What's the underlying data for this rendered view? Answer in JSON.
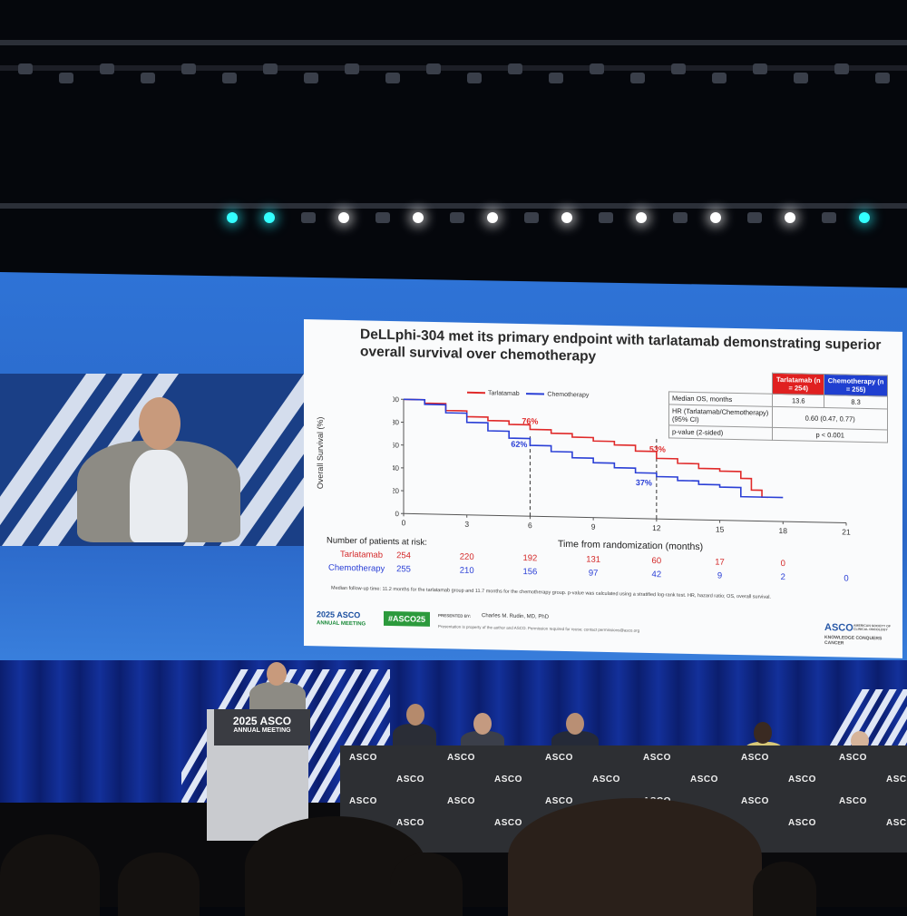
{
  "slide": {
    "title": "DeLLphi-304 met its primary endpoint with tarlatamab demonstrating superior overall survival over chemotherapy",
    "legend": {
      "tarlatamab": "Tarlatamab",
      "chemotherapy": "Chemotherapy"
    },
    "ylabel": "Overall Survival (%)",
    "xlabel": "Time from randomization (months)",
    "yticks": [
      "100",
      "80",
      "60",
      "40",
      "20",
      "0"
    ],
    "xticks": [
      "0",
      "3",
      "6",
      "9",
      "12",
      "15",
      "18",
      "21"
    ],
    "annotations": {
      "t6": "76%",
      "c6": "62%",
      "t12": "53%",
      "c12": "37%"
    },
    "stats": {
      "col_tarla": "Tarlatamab (n = 254)",
      "col_chemo": "Chemotherapy (n = 255)",
      "row1_label": "Median OS, months",
      "row1_tarla": "13.6",
      "row1_chemo": "8.3",
      "row2_label": "HR (Tarlatamab/Chemotherapy) (95% CI)",
      "row2_value": "0.60 (0.47, 0.77)",
      "row3_label": "p-value (2-sided)",
      "row3_value": "p < 0.001"
    },
    "at_risk": {
      "heading": "Number of patients at risk:",
      "tarla_label": "Tarlatamab",
      "chemo_label": "Chemotherapy",
      "tarla": [
        "254",
        "220",
        "192",
        "131",
        "60",
        "17",
        "0"
      ],
      "chemo": [
        "255",
        "210",
        "156",
        "97",
        "42",
        "9",
        "2",
        "0"
      ]
    },
    "footnote": "Median follow-up time: 11.2 months for the tarlatamab group and 11.7 months for the chemotherapy group. p-value was calculated using a stratified log-rank test. HR, hazard ratio; OS, overall survival.",
    "footer": {
      "meeting": "2025 ASCO",
      "meeting_sub": "ANNUAL MEETING",
      "hashtag": "#ASCO25",
      "presented_by": "PRESENTED BY:",
      "presenter": "Charles M. Rudin, MD, PhD",
      "permission": "Presentation is property of the author and ASCO. Permission required for reuse; contact permissions@asco.org",
      "asco": "ASCO",
      "asco_sub": "AMERICAN SOCIETY OF CLINICAL ONCOLOGY",
      "tagline": "KNOWLEDGE CONQUERS CANCER"
    }
  },
  "stage": {
    "podium_line1": "2025 ASCO",
    "podium_line2": "ANNUAL MEETING",
    "table_brand": "ASCO"
  },
  "chart_data": {
    "type": "line",
    "xlabel": "Time from randomization (months)",
    "ylabel": "Overall Survival (%)",
    "xlim": [
      0,
      21
    ],
    "ylim": [
      0,
      100
    ],
    "series": [
      {
        "name": "Tarlatamab",
        "color": "#e02a2a",
        "x": [
          0,
          1,
          2,
          3,
          4,
          5,
          6,
          7,
          8,
          9,
          10,
          11,
          12,
          13,
          14,
          15,
          16,
          16.5,
          17,
          17.3
        ],
        "y": [
          100,
          97,
          91,
          86,
          83,
          80,
          76,
          73,
          70,
          67,
          64,
          59,
          53,
          49,
          45,
          43,
          37,
          27,
          21,
          21
        ]
      },
      {
        "name": "Chemotherapy",
        "color": "#2a3fd6",
        "x": [
          0,
          1,
          2,
          3,
          4,
          5,
          6,
          7,
          8,
          9,
          10,
          11,
          12,
          13,
          14,
          15,
          16,
          17,
          18
        ],
        "y": [
          100,
          96,
          89,
          81,
          74,
          68,
          62,
          57,
          52,
          48,
          44,
          40,
          37,
          34,
          31,
          29,
          21,
          21,
          21
        ]
      }
    ]
  }
}
